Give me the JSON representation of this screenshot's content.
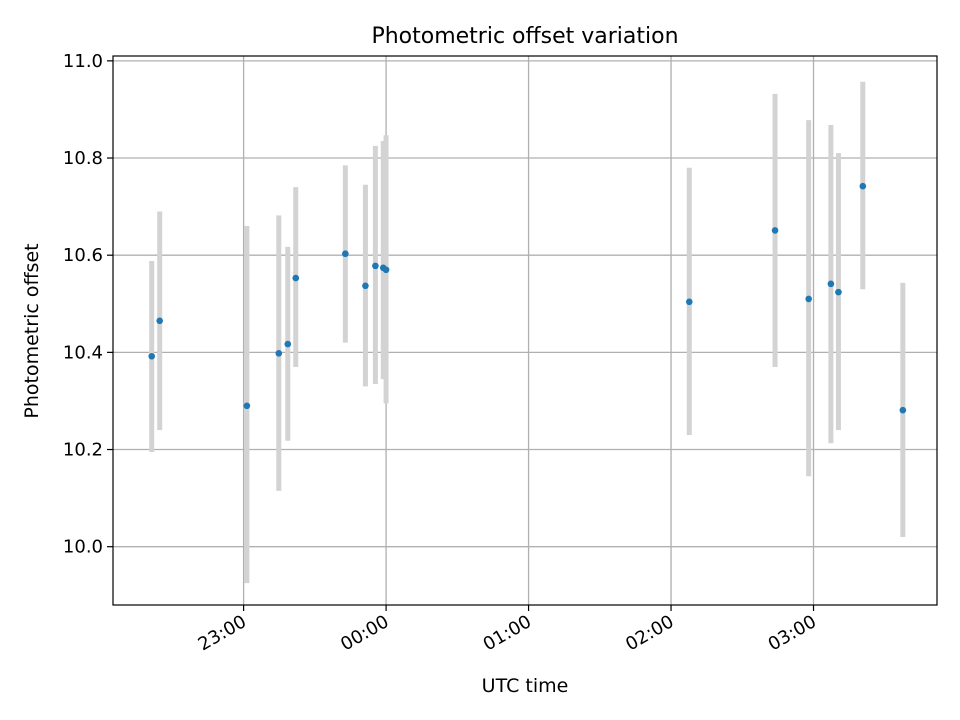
{
  "chart_data": {
    "type": "scatter",
    "title": "Photometric offset variation",
    "xlabel": "UTC time",
    "ylabel": "Photometric offset",
    "x_unit": "hours relative to 00:00 UTC",
    "xlim": [
      -1.9167,
      3.8667
    ],
    "ylim": [
      9.88,
      11.01
    ],
    "x_ticks": [
      {
        "value": -1,
        "label": "23:00"
      },
      {
        "value": 0,
        "label": "00:00"
      },
      {
        "value": 1,
        "label": "01:00"
      },
      {
        "value": 2,
        "label": "02:00"
      },
      {
        "value": 3,
        "label": "03:00"
      }
    ],
    "y_ticks": [
      {
        "value": 10.0,
        "label": "10.0"
      },
      {
        "value": 10.2,
        "label": "10.2"
      },
      {
        "value": 10.4,
        "label": "10.4"
      },
      {
        "value": 10.6,
        "label": "10.6"
      },
      {
        "value": 10.8,
        "label": "10.8"
      },
      {
        "value": 11.0,
        "label": "11.0"
      }
    ],
    "grid": true,
    "point_color": "#1f77b4",
    "errorbar_color": "#d3d3d3",
    "points": [
      {
        "x": -1.645,
        "y": 10.392,
        "err_low": 10.195,
        "err_high": 10.588
      },
      {
        "x": -1.589,
        "y": 10.465,
        "err_low": 10.24,
        "err_high": 10.69
      },
      {
        "x": -0.977,
        "y": 10.29,
        "err_low": 9.925,
        "err_high": 10.66
      },
      {
        "x": -0.753,
        "y": 10.398,
        "err_low": 10.115,
        "err_high": 10.682
      },
      {
        "x": -0.69,
        "y": 10.417,
        "err_low": 10.218,
        "err_high": 10.617
      },
      {
        "x": -0.634,
        "y": 10.553,
        "err_low": 10.37,
        "err_high": 10.74
      },
      {
        "x": -0.286,
        "y": 10.603,
        "err_low": 10.42,
        "err_high": 10.785
      },
      {
        "x": -0.145,
        "y": 10.537,
        "err_low": 10.33,
        "err_high": 10.745
      },
      {
        "x": -0.075,
        "y": 10.578,
        "err_low": 10.335,
        "err_high": 10.825
      },
      {
        "x": -0.02,
        "y": 10.574,
        "err_low": 10.345,
        "err_high": 10.835
      },
      {
        "x": 0.0,
        "y": 10.57,
        "err_low": 10.295,
        "err_high": 10.847
      },
      {
        "x": 2.128,
        "y": 10.504,
        "err_low": 10.23,
        "err_high": 10.78
      },
      {
        "x": 2.73,
        "y": 10.651,
        "err_low": 10.37,
        "err_high": 10.932
      },
      {
        "x": 2.966,
        "y": 10.51,
        "err_low": 10.145,
        "err_high": 10.878
      },
      {
        "x": 3.122,
        "y": 10.541,
        "err_low": 10.213,
        "err_high": 10.868
      },
      {
        "x": 3.175,
        "y": 10.524,
        "err_low": 10.24,
        "err_high": 10.81
      },
      {
        "x": 3.346,
        "y": 10.742,
        "err_low": 10.53,
        "err_high": 10.957
      },
      {
        "x": 3.627,
        "y": 10.281,
        "err_low": 10.02,
        "err_high": 10.543
      }
    ]
  }
}
